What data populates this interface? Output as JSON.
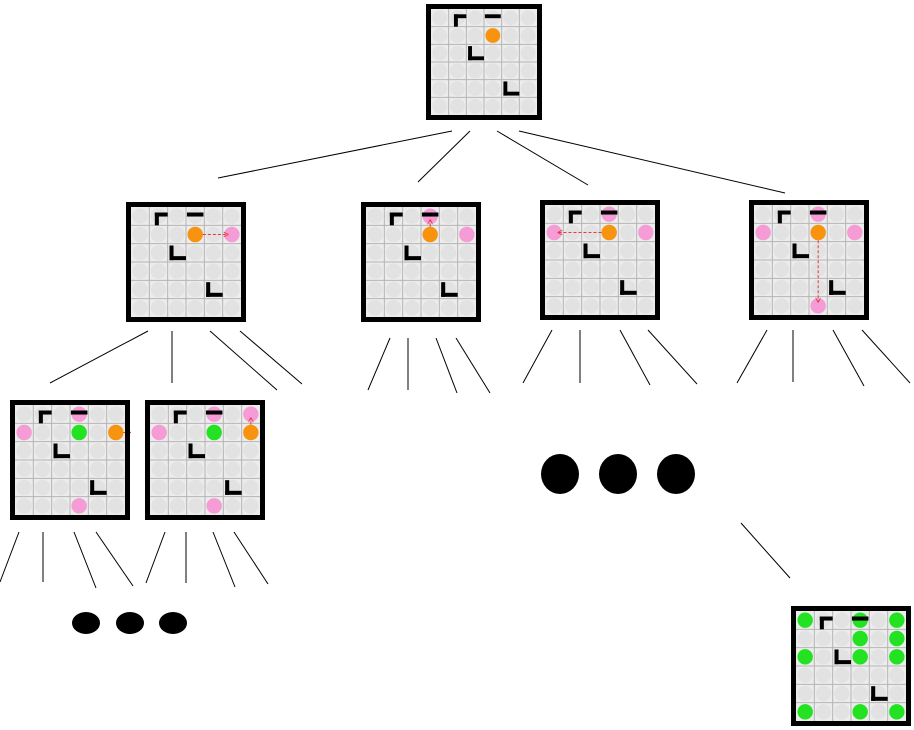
{
  "diagram": {
    "grid_size": 6,
    "colors": {
      "cell_fill": "#ececec",
      "cell_line": "#b5b5b5",
      "frame": "#000000",
      "wall": "#000000",
      "agent": "#f7930f",
      "visited": "#f59bd6",
      "explored": "#22e222",
      "move_arrow": "#e23b3b",
      "edge": "#000000",
      "ellipsis_dot": "#000000"
    },
    "walls": [
      {
        "shape": "corner-top-left",
        "cell": [
          0,
          1
        ]
      },
      {
        "shape": "bar-top",
        "cell": [
          0,
          3
        ]
      },
      {
        "shape": "corner-bottom-left",
        "cell": [
          2,
          2
        ]
      },
      {
        "shape": "corner-bottom-left",
        "cell": [
          4,
          4
        ]
      }
    ],
    "boards": [
      {
        "id": "root",
        "agent": [
          1,
          3
        ],
        "visited": [],
        "explored": [],
        "moves": []
      },
      {
        "id": "level1-right",
        "agent": [
          1,
          3
        ],
        "visited": [
          [
            1,
            5
          ]
        ],
        "explored": [],
        "moves": [
          {
            "from": [
              1,
              3
            ],
            "to": [
              1,
              5
            ]
          }
        ]
      },
      {
        "id": "level1-up",
        "agent": [
          1,
          3
        ],
        "visited": [
          [
            0,
            3
          ],
          [
            1,
            5
          ]
        ],
        "explored": [],
        "moves": [
          {
            "from": [
              1,
              3
            ],
            "to": [
              0,
              3
            ]
          }
        ]
      },
      {
        "id": "level1-left",
        "agent": [
          1,
          3
        ],
        "visited": [
          [
            0,
            3
          ],
          [
            1,
            0
          ],
          [
            1,
            5
          ]
        ],
        "explored": [],
        "moves": [
          {
            "from": [
              1,
              3
            ],
            "to": [
              1,
              0
            ]
          }
        ]
      },
      {
        "id": "level1-down",
        "agent": [
          1,
          3
        ],
        "visited": [
          [
            0,
            3
          ],
          [
            1,
            0
          ],
          [
            1,
            5
          ],
          [
            5,
            3
          ]
        ],
        "explored": [],
        "moves": [
          {
            "from": [
              1,
              3
            ],
            "to": [
              5,
              3
            ]
          }
        ]
      },
      {
        "id": "level2-a",
        "agent": [
          1,
          5
        ],
        "visited": [
          [
            0,
            3
          ],
          [
            1,
            0
          ],
          [
            5,
            3
          ]
        ],
        "explored": [
          [
            1,
            3
          ]
        ],
        "moves": [
          {
            "from": [
              1,
              5
            ],
            "to": [
              1,
              6
            ]
          }
        ]
      },
      {
        "id": "level2-b",
        "agent": [
          1,
          5
        ],
        "visited": [
          [
            0,
            3
          ],
          [
            1,
            0
          ],
          [
            5,
            3
          ],
          [
            0,
            5
          ]
        ],
        "explored": [
          [
            1,
            3
          ]
        ],
        "moves": [
          {
            "from": [
              1,
              5
            ],
            "to": [
              0,
              5
            ]
          }
        ]
      },
      {
        "id": "goal",
        "agent": null,
        "visited": [],
        "explored": [
          [
            0,
            0
          ],
          [
            0,
            3
          ],
          [
            0,
            5
          ],
          [
            1,
            3
          ],
          [
            1,
            5
          ],
          [
            2,
            0
          ],
          [
            2,
            3
          ],
          [
            2,
            5
          ],
          [
            5,
            0
          ],
          [
            5,
            3
          ],
          [
            5,
            5
          ]
        ],
        "moves": []
      }
    ],
    "edges": [
      {
        "from": "root",
        "to": "level1-right"
      },
      {
        "from": "root",
        "to": "level1-up"
      },
      {
        "from": "root",
        "to": "level1-left"
      },
      {
        "from": "root",
        "to": "level1-down"
      },
      {
        "from": "level1-right",
        "to": "level2-a"
      },
      {
        "from": "level1-right",
        "to": "level2-b"
      },
      {
        "from": "level1-right",
        "to": "pruned"
      },
      {
        "from": "level1-right",
        "to": "pruned"
      },
      {
        "from": "level1-up",
        "to": "pruned"
      },
      {
        "from": "level1-left",
        "to": "pruned"
      },
      {
        "from": "level1-down",
        "to": "pruned"
      },
      {
        "from": "level2-a",
        "to": "pruned"
      },
      {
        "from": "level2-b",
        "to": "pruned"
      },
      {
        "from": "ellipsis",
        "to": "goal"
      }
    ],
    "ellipses": [
      {
        "id": "middle-ellipsis",
        "dots": 3
      },
      {
        "id": "bottom-ellipsis",
        "dots": 3
      }
    ]
  }
}
